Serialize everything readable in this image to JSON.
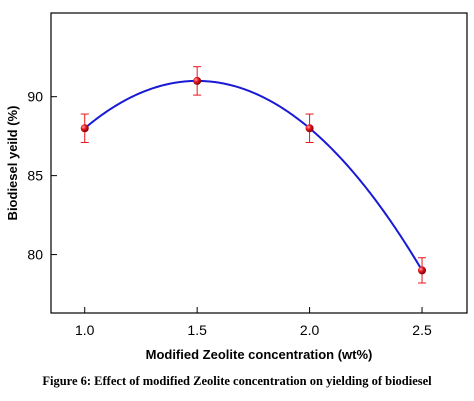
{
  "chart_data": {
    "type": "scatter",
    "title": "",
    "xlabel": "Modified Zeolite concentration (wt%)",
    "ylabel": "Biodiesel yeild (%)",
    "xlim": [
      0.85,
      2.7
    ],
    "ylim": [
      76.3,
      95.3
    ],
    "xticks": [
      1.0,
      1.5,
      2.0,
      2.5
    ],
    "xtick_labels": [
      "1.0",
      "1.5",
      "2.0",
      "2.5"
    ],
    "yticks": [
      80,
      85,
      90
    ],
    "ytick_labels": [
      "80",
      "85",
      "90"
    ],
    "grid": false,
    "series": [
      {
        "x": [
          1.0,
          1.5,
          2.0,
          2.5
        ],
        "y": [
          88,
          91,
          88,
          79
        ],
        "error": [
          0.9,
          0.9,
          0.9,
          0.8
        ],
        "marker_color": "#e8141c",
        "error_color": "#e8141c",
        "fit_line_color": "#1a1ad6",
        "fit": "smooth-curve"
      }
    ]
  },
  "caption": "Figure 6: Effect of modified Zeolite concentration on yielding of biodiesel"
}
